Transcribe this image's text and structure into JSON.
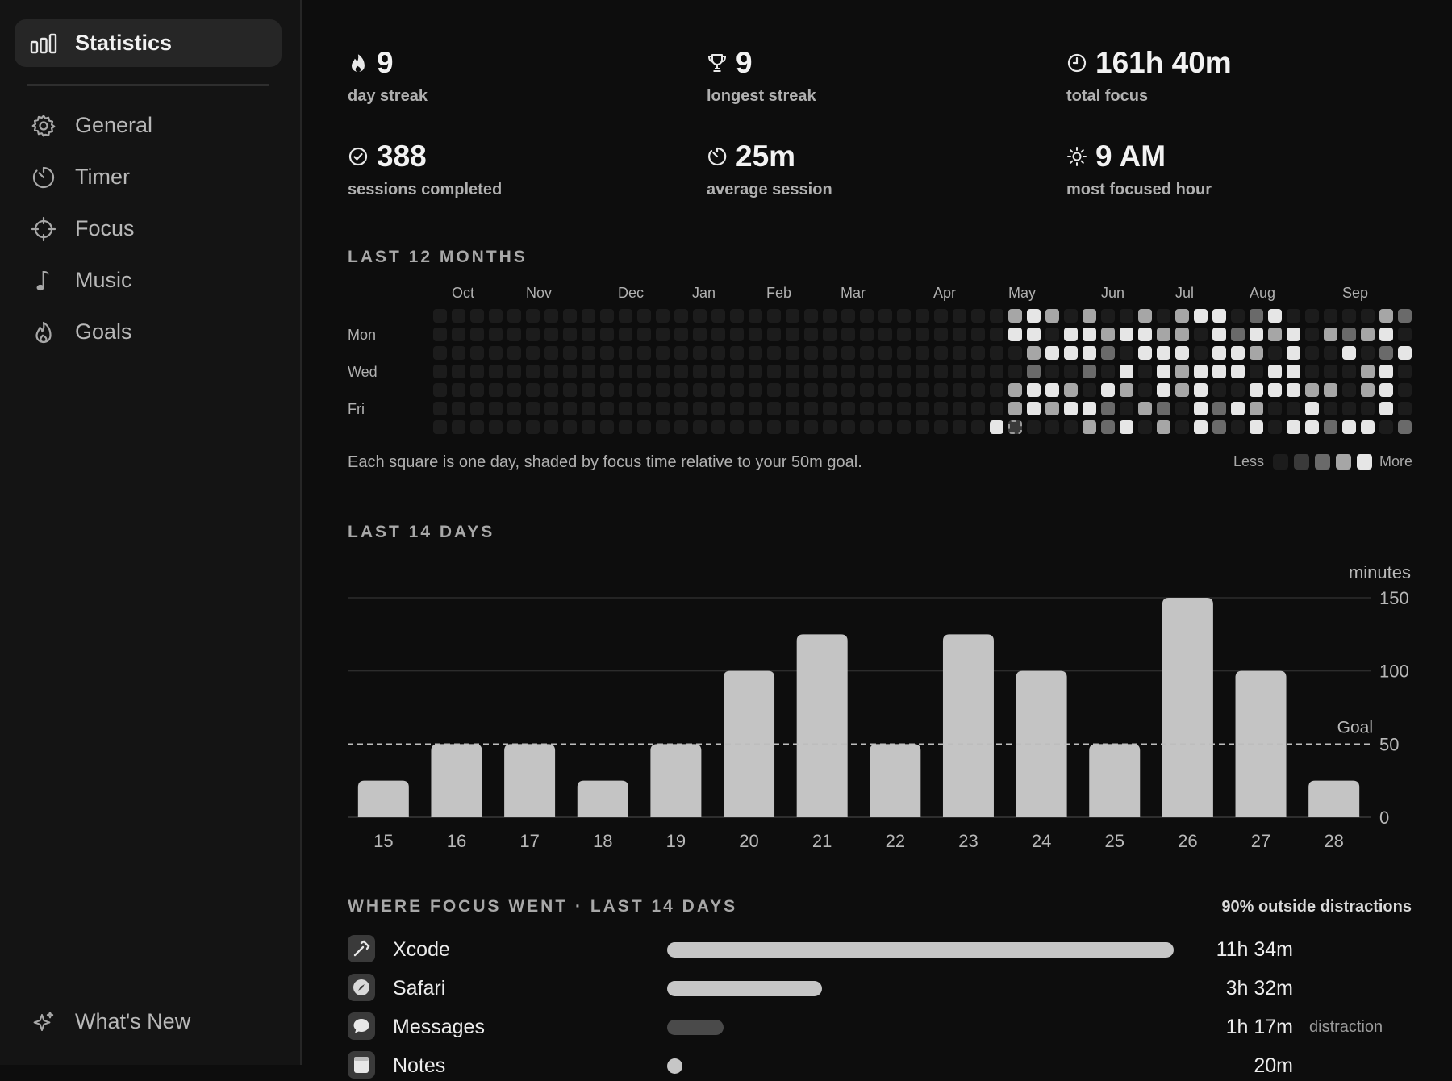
{
  "sidebar": {
    "items": [
      {
        "label": "Statistics",
        "icon": "bar-chart-icon",
        "active": true
      },
      {
        "label": "General",
        "icon": "gear-icon"
      },
      {
        "label": "Timer",
        "icon": "timer-icon"
      },
      {
        "label": "Focus",
        "icon": "crosshair-icon"
      },
      {
        "label": "Music",
        "icon": "music-note-icon"
      },
      {
        "label": "Goals",
        "icon": "flame-icon"
      }
    ],
    "whats_new": {
      "label": "What's New",
      "icon": "sparkle-icon"
    }
  },
  "stats": [
    {
      "value": "9",
      "caption": "day streak",
      "icon": "flame-icon"
    },
    {
      "value": "9",
      "caption": "longest streak",
      "icon": "trophy-icon"
    },
    {
      "value": "161h 40m",
      "caption": "total focus",
      "icon": "clock-icon"
    },
    {
      "value": "388",
      "caption": "sessions completed",
      "icon": "checkmark-circle-icon"
    },
    {
      "value": "25m",
      "caption": "average session",
      "icon": "timer-icon"
    },
    {
      "value": "9 AM",
      "caption": "most focused hour",
      "icon": "sun-icon"
    }
  ],
  "heatmap": {
    "title": "LAST 12 MONTHS",
    "months": [
      "Oct",
      "Nov",
      "Dec",
      "Jan",
      "Feb",
      "Mar",
      "Apr",
      "May",
      "Jun",
      "Jul",
      "Aug",
      "Sep"
    ],
    "day_labels": [
      "Mon",
      "Wed",
      "Fri"
    ],
    "note": "Each square is one day, shaded by focus time relative to your 50m goal.",
    "legend_less": "Less",
    "legend_more": "More",
    "colors": [
      "#1c1c1c",
      "#3a3a3a",
      "#6a6a6a",
      "#a6a6a6",
      "#e6e6e6"
    ]
  },
  "chart_data": {
    "type": "bar",
    "title": "LAST 14 DAYS",
    "ylabel": "minutes",
    "categories": [
      "15",
      "16",
      "17",
      "18",
      "19",
      "20",
      "21",
      "22",
      "23",
      "24",
      "25",
      "26",
      "27",
      "28"
    ],
    "values": [
      25,
      50,
      50,
      25,
      50,
      100,
      125,
      50,
      125,
      100,
      50,
      150,
      100,
      25
    ],
    "ylim": [
      0,
      150
    ],
    "yticks": [
      "0",
      "50",
      "100",
      "150"
    ],
    "goal": 50,
    "goal_label": "Goal",
    "bar_color": "#c4c4c4"
  },
  "focus_apps": {
    "title": "WHERE FOCUS WENT · LAST 14 DAYS",
    "outside_note": "90% outside distractions",
    "apps": [
      {
        "name": "Xcode",
        "time": "11h 34m",
        "fraction": 1.0,
        "icon": "hammer-icon",
        "tag": ""
      },
      {
        "name": "Safari",
        "time": "3h 32m",
        "fraction": 0.305,
        "icon": "compass-icon",
        "tag": ""
      },
      {
        "name": "Messages",
        "time": "1h 17m",
        "fraction": 0.111,
        "icon": "speech-bubble-icon",
        "tag": "distraction"
      },
      {
        "name": "Notes",
        "time": "20m",
        "fraction": 0.03,
        "icon": "notepad-icon",
        "tag": ""
      }
    ]
  }
}
